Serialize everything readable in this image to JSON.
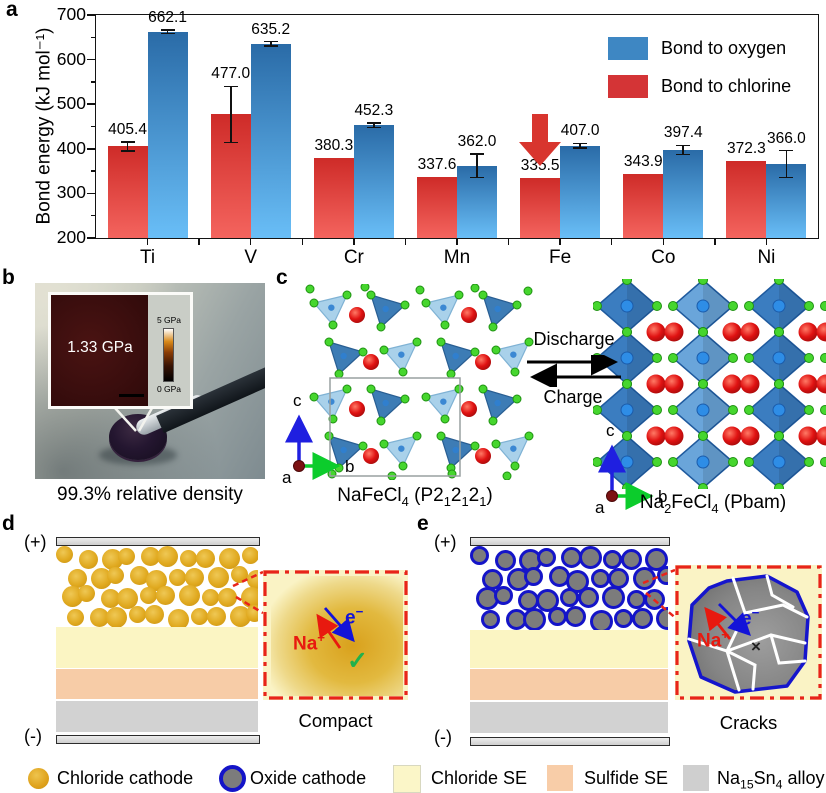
{
  "figure": {
    "panel_labels": {
      "a": "a",
      "b": "b",
      "c": "c",
      "d": "d",
      "e": "e"
    }
  },
  "chart_data": {
    "type": "bar",
    "title": "",
    "ylabel": "Bond energy (kJ mol⁻¹)",
    "categories": [
      "Ti",
      "V",
      "Cr",
      "Mn",
      "Fe",
      "Co",
      "Ni"
    ],
    "series": [
      {
        "name": "Bond to chlorine",
        "values": [
          405.4,
          477.0,
          380.3,
          337.6,
          335.5,
          343.9,
          372.3
        ],
        "errors": [
          10,
          63,
          0,
          0,
          0,
          0,
          0
        ],
        "color_top": "#ce2b28",
        "color_bottom": "#f4645e"
      },
      {
        "name": "Bond to oxygen",
        "values": [
          662.1,
          635.2,
          452.3,
          362.0,
          407.0,
          397.4,
          366.0
        ],
        "errors": [
          4,
          5,
          5,
          26,
          5,
          10,
          30
        ],
        "color_top": "#2a6ba7",
        "color_bottom": "#69bef7"
      }
    ],
    "ylim": [
      200,
      700
    ],
    "yticks": [
      200,
      300,
      400,
      500,
      600,
      700
    ],
    "grid": false,
    "legend_position": "top-right",
    "legend": [
      {
        "label": "Bond to oxygen",
        "color": "#3e87c3"
      },
      {
        "label": "Bond to chlorine",
        "color": "#d43436"
      }
    ],
    "annotation_arrow": {
      "category": "Fe",
      "color": "#d8352e"
    }
  },
  "panel_b": {
    "pressure_label": "1.33 GPa",
    "scale_top": "5 GPa",
    "scale_bottom": "0 GPa",
    "caption": "99.3% relative density"
  },
  "panel_c": {
    "left_caption_parts": [
      "NaFeCl",
      "4",
      " (P2",
      "1",
      "2",
      "1",
      "2",
      "1",
      ")"
    ],
    "right_caption_parts": [
      "Na",
      "2",
      "FeCl",
      "4",
      " (Pbam)"
    ],
    "discharge": "Discharge",
    "charge": "Charge",
    "axes": {
      "a": "a",
      "b": "b",
      "c": "c"
    }
  },
  "panel_d": {
    "plus": "(+)",
    "minus": "(-)",
    "na_label": "Na",
    "na_sup": "+",
    "e_label": "e",
    "e_sup": "−",
    "check": "✓",
    "inset_caption": "Compact"
  },
  "panel_e": {
    "plus": "(+)",
    "minus": "(-)",
    "na_label": "Na",
    "na_sup": "+",
    "e_label": "e",
    "e_sup": "−",
    "cross": "×",
    "inset_caption": "Cracks"
  },
  "legend_bottom": {
    "items": [
      {
        "label": "Chloride cathode",
        "icon": "gold-circle",
        "color": "#e0a91f"
      },
      {
        "label": "Oxide cathode",
        "icon": "blue-ring-circle",
        "color": "#7c7c7c",
        "ring": "#1414c8"
      },
      {
        "label": "Chloride SE",
        "icon": "square",
        "color": "#fbf6c8"
      },
      {
        "label": "Sulfide SE",
        "icon": "square",
        "color": "#f8cda8"
      },
      {
        "label_parts": [
          "Na",
          "15",
          "Sn",
          "4",
          " alloy"
        ],
        "icon": "square",
        "color": "#cfcfcf"
      }
    ]
  }
}
